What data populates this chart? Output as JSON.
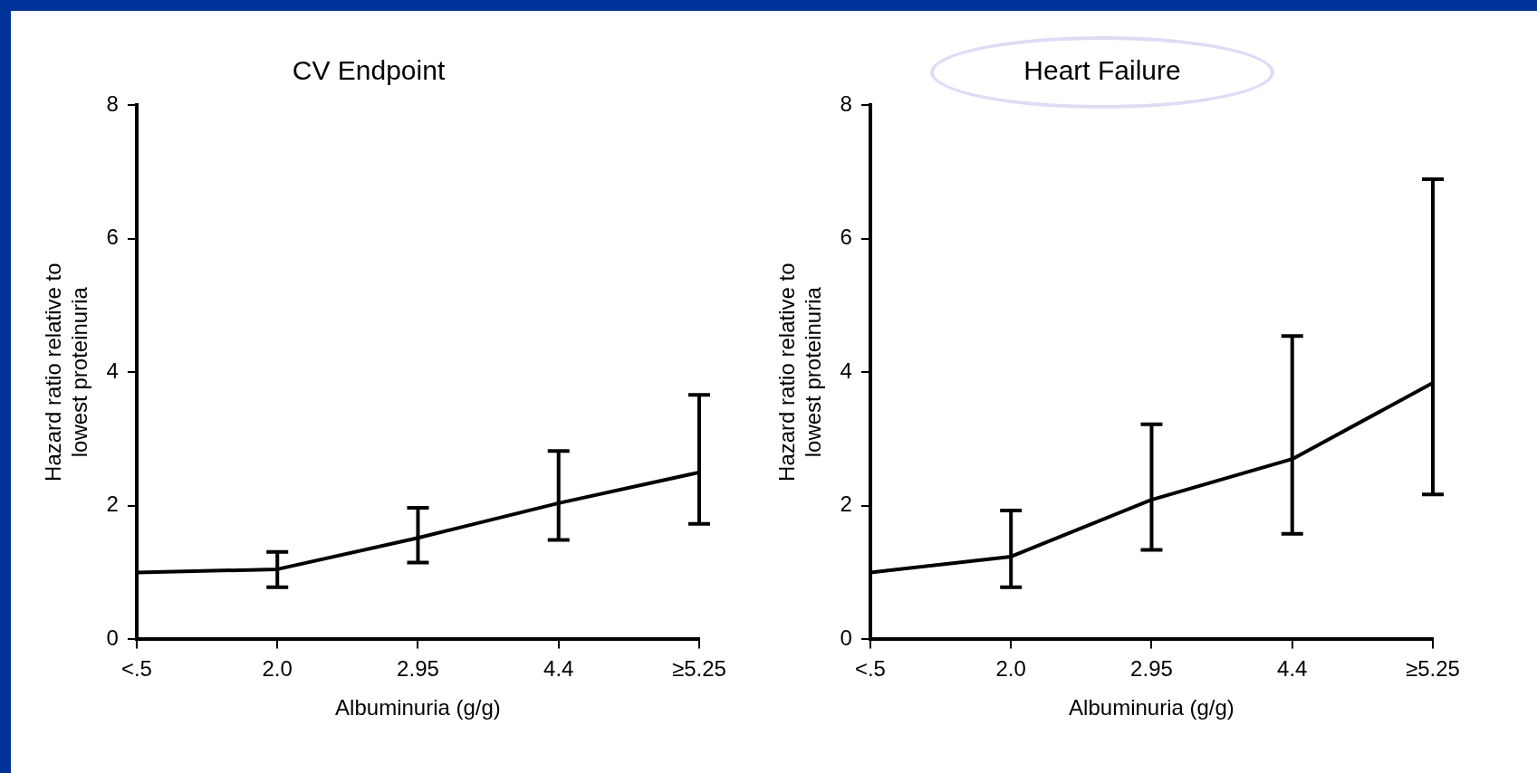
{
  "chart_data": [
    {
      "type": "line",
      "title": "CV Endpoint",
      "xlabel": "Albuminuria (g/g)",
      "ylabel": "Hazard ratio relative to\nlowest proteinuria",
      "categories": [
        "<.5",
        "2.0",
        "2.95",
        "4.4",
        "≥5.25"
      ],
      "series": [
        {
          "color": "#000000",
          "values": [
            1.0,
            1.05,
            1.52,
            2.04,
            2.5
          ],
          "errors": [
            null,
            [
              0.78,
              1.31
            ],
            [
              1.15,
              1.97
            ],
            [
              1.49,
              2.82
            ],
            [
              1.73,
              3.66
            ]
          ]
        }
      ],
      "ylim": [
        0,
        8
      ],
      "yticks": [
        0,
        2,
        4,
        6,
        8
      ],
      "grid": false,
      "legend": false,
      "marker": "none",
      "line_style": "solid"
    },
    {
      "type": "line",
      "title": "Heart Failure",
      "xlabel": "Albuminuria (g/g)",
      "ylabel": "Hazard ratio relative to\nlowest proteinuria",
      "categories": [
        "<.5",
        "2.0",
        "2.95",
        "4.4",
        "≥5.25"
      ],
      "series": [
        {
          "color": "#000000",
          "values": [
            1.0,
            1.24,
            2.09,
            2.7,
            3.84
          ],
          "errors": [
            null,
            [
              0.78,
              1.93
            ],
            [
              1.34,
              3.22
            ],
            [
              1.58,
              4.54
            ],
            [
              2.17,
              6.89
            ]
          ]
        }
      ],
      "ylim": [
        0,
        8
      ],
      "yticks": [
        0,
        2,
        4,
        6,
        8
      ],
      "grid": false,
      "legend": false,
      "marker": "none",
      "line_style": "solid"
    }
  ]
}
